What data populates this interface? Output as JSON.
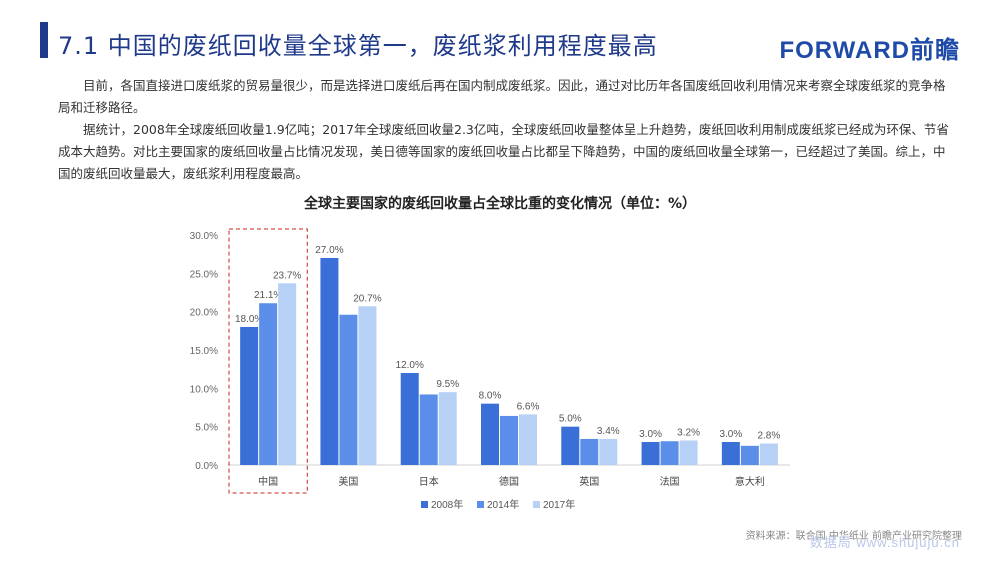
{
  "header": {
    "title": "7.1  中国的废纸回收量全球第一，废纸浆利用程度最高",
    "logo": "FORWARD前瞻"
  },
  "body": {
    "paragraph1": "目前，各国直接进口废纸浆的贸易量很少，而是选择进口废纸后再在国内制成废纸浆。因此，通过对比历年各国废纸回收利用情况来考察全球废纸浆的竞争格局和迁移路径。",
    "paragraph2": "据统计，2008年全球废纸回收量1.9亿吨；2017年全球废纸回收量2.3亿吨，全球废纸回收量整体呈上升趋势，废纸回收利用制成废纸浆已经成为环保、节省成本大趋势。对比主要国家的废纸回收量占比情况发现，美日德等国家的废纸回收量占比都呈下降趋势，中国的废纸回收量全球第一，已经超过了美国。综上，中国的废纸回收量最大，废纸浆利用程度最高。"
  },
  "chart_data": {
    "type": "bar",
    "title": "全球主要国家的废纸回收量占全球比重的变化情况（单位：%）",
    "categories": [
      "中国",
      "美国",
      "日本",
      "德国",
      "英国",
      "法国",
      "意大利"
    ],
    "series": [
      {
        "name": "2008年",
        "values": [
          18.0,
          27.0,
          12.0,
          8.0,
          5.0,
          3.0,
          3.0
        ],
        "labels": [
          "18.0%",
          "27.0%",
          "12.0%",
          "8.0%",
          "5.0%",
          "3.0%",
          "3.0%"
        ],
        "color": "#3a6fd8"
      },
      {
        "name": "2014年",
        "values": [
          21.1,
          19.6,
          9.2,
          6.4,
          3.4,
          3.1,
          2.5
        ],
        "labels": [
          "21.1%",
          "",
          "",
          "",
          "",
          "",
          ""
        ],
        "color": "#5b8ee8"
      },
      {
        "name": "2017年",
        "values": [
          23.7,
          20.7,
          9.5,
          6.6,
          3.4,
          3.2,
          2.8
        ],
        "labels": [
          "23.7%",
          "20.7%",
          "9.5%",
          "6.6%",
          "3.4%",
          "3.2%",
          "2.8%"
        ],
        "color": "#b7d0f5"
      }
    ],
    "ylim": [
      0,
      30
    ],
    "yticks": [
      "0.0%",
      "5.0%",
      "10.0%",
      "15.0%",
      "20.0%",
      "25.0%",
      "30.0%"
    ],
    "grid": false,
    "legend_position": "bottom",
    "highlight_category": "中国",
    "highlight_color": "#cc2222"
  },
  "footer": {
    "source": "资料来源：联合国  中华纸业  前瞻产业研究院整理",
    "watermark_url": "数据局 www.shujuju.cn"
  }
}
